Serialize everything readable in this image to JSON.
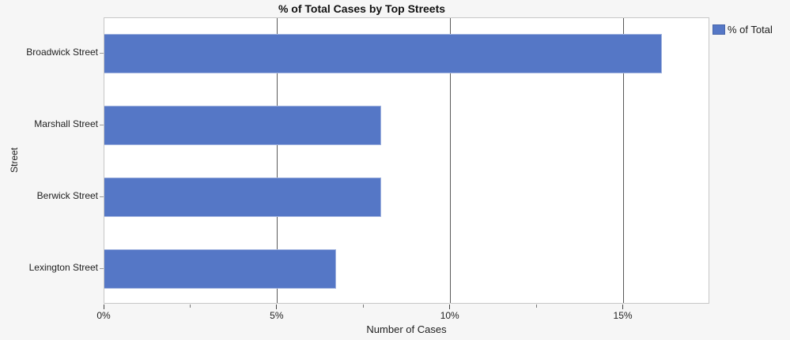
{
  "window": {
    "background_color": "#f6f6f6"
  },
  "chart_data": {
    "type": "bar",
    "orientation": "horizontal",
    "title": "% of Total Cases by Top Streets",
    "categories": [
      "Broadwick Street",
      "Marshall Street",
      "Berwick Street",
      "Lexington Street"
    ],
    "series": [
      {
        "name": "% of Total",
        "values": [
          16.1,
          8.0,
          8.0,
          6.7
        ]
      }
    ],
    "values_unit": "%",
    "xlabel": "Number of Cases",
    "ylabel": "Street",
    "xlim": [
      0,
      17.5
    ],
    "xticks": [
      {
        "value": 0,
        "label": "0%"
      },
      {
        "value": 5,
        "label": "5%"
      },
      {
        "value": 10,
        "label": "10%"
      },
      {
        "value": 15,
        "label": "15%"
      }
    ],
    "minor_xticks": [
      2.5,
      7.5,
      12.5
    ],
    "grid": "vertical-major-only",
    "legend": {
      "position": "top-right",
      "entries": [
        {
          "label": "% of Total",
          "color": "#5577c6"
        }
      ]
    },
    "colors": {
      "bar_fill": "#5577c6",
      "bar_edge": "#a0b2de",
      "gridline": "#595959",
      "plot_frame": "#c7c7c7",
      "plot_background": "#ffffff",
      "page_background": "#f6f6f6",
      "text": "#1e1e1e",
      "title_text": "#111111"
    }
  }
}
